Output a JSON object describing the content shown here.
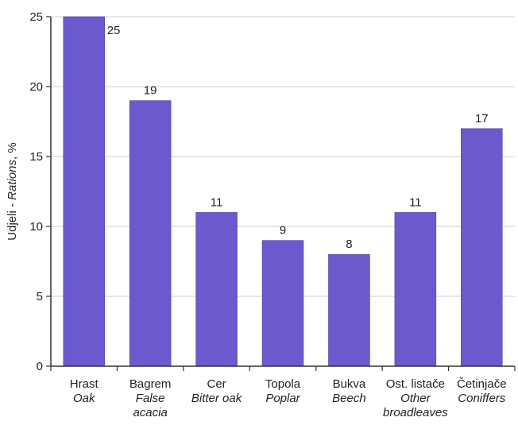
{
  "chart_data": {
    "type": "bar",
    "categories": [
      {
        "hr": "Hrast",
        "en": [
          "Oak"
        ]
      },
      {
        "hr": "Bagrem",
        "en": [
          "False",
          "acacia"
        ]
      },
      {
        "hr": "Cer",
        "en": [
          "Bitter oak"
        ]
      },
      {
        "hr": "Topola",
        "en": [
          "Poplar"
        ]
      },
      {
        "hr": "Bukva",
        "en": [
          "Beech"
        ]
      },
      {
        "hr": "Ost. listače",
        "en": [
          "Other",
          "broadleaves"
        ]
      },
      {
        "hr": "Četinjače",
        "en": [
          "Coniffers"
        ]
      }
    ],
    "values": [
      25,
      19,
      11,
      9,
      8,
      11,
      17
    ],
    "value_labels": [
      "25",
      "19",
      "11",
      "9",
      "8",
      "11",
      "17"
    ],
    "ylabel": {
      "prefix": "Udjeli - ",
      "italic": "Rations",
      "suffix": ", %"
    },
    "ylim": [
      0,
      25
    ],
    "yticks": [
      0,
      5,
      10,
      15,
      20,
      25
    ],
    "grid": true,
    "legend": "none",
    "colors": {
      "bar": "#6a5acd",
      "bar_edge": "#4b3fa3",
      "grid": "#cfcfcf",
      "axis": "#333333"
    }
  }
}
